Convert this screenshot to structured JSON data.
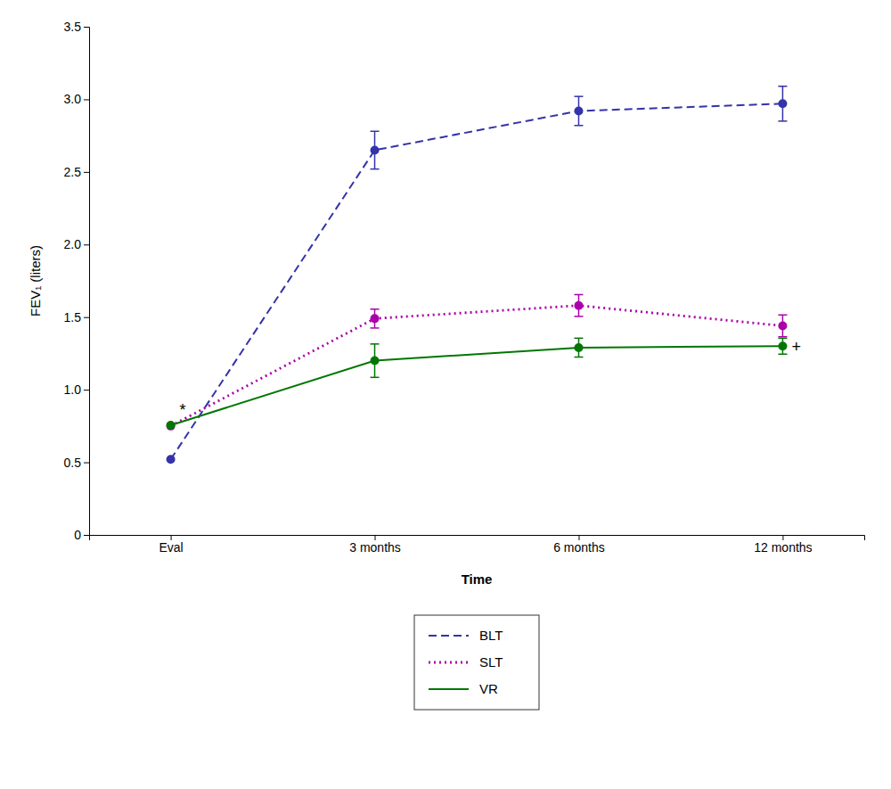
{
  "chart_data": {
    "type": "line",
    "categories": [
      "Eval",
      "3 months",
      "6 months",
      "12 months"
    ],
    "series": [
      {
        "name": "BLT",
        "color": "#3333aa",
        "line_style": "dashed",
        "marker": "circle",
        "values": [
          0.52,
          2.65,
          2.92,
          2.97
        ],
        "errors": [
          null,
          0.13,
          0.1,
          0.12
        ]
      },
      {
        "name": "SLT",
        "color": "#aa00aa",
        "line_style": "dotted",
        "marker": "circle",
        "values": [
          0.75,
          1.49,
          1.58,
          1.44
        ],
        "errors": [
          null,
          0.065,
          0.075,
          0.075
        ]
      },
      {
        "name": "VR",
        "color": "#007700",
        "line_style": "solid",
        "marker": "circle",
        "values": [
          0.755,
          1.2,
          1.29,
          1.3
        ],
        "errors": [
          null,
          0.115,
          0.065,
          0.055
        ]
      }
    ],
    "x_label": "Time",
    "y_label": "FEV₁ (liters)",
    "ylim": [
      0,
      3.5
    ],
    "yticks": [
      0,
      0.5,
      {
        "value": 1.0,
        "label": "1.0"
      },
      1.5,
      {
        "value": 2.0,
        "label": "2.0"
      },
      2.5,
      {
        "value": 3.0,
        "label": "3.0"
      },
      3.5
    ],
    "annotations": [
      {
        "text": "*",
        "x": "Eval",
        "y": 0.86
      },
      {
        "text": "+",
        "x": "12 months",
        "y": 1.3
      }
    ],
    "grid": false,
    "legend": "bottom"
  }
}
